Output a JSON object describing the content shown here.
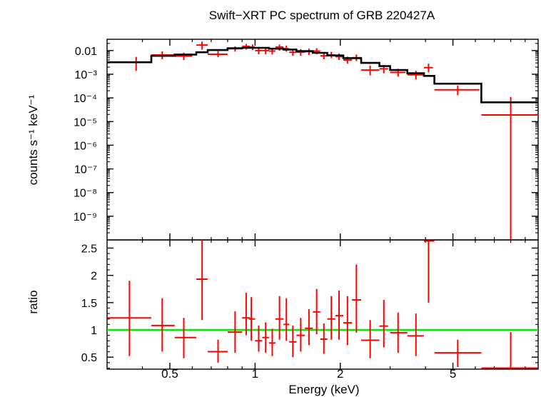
{
  "chart_data": [
    {
      "type": "scatter",
      "title": "Swift−XRT PC spectrum of GRB 220427A",
      "ylabel": "counts s⁻¹ keV⁻¹",
      "xscale": "log",
      "yscale": "log",
      "xlim": [
        0.3,
        10
      ],
      "ylim": [
        1e-10,
        0.03
      ],
      "ytick_labels": [
        "0.01",
        "10⁻³",
        "10⁻⁴",
        "10⁻⁵",
        "10⁻⁶",
        "10⁻⁷",
        "10⁻⁸",
        "10⁻⁹"
      ],
      "series": [
        {
          "kind": "data",
          "color": "#ff0000",
          "points": [
            {
              "x": 0.38,
              "xlo": 0.3,
              "xhi": 0.43,
              "y": 0.0032,
              "ylo": 0.0014,
              "yhi": 0.0054
            },
            {
              "x": 0.47,
              "xlo": 0.43,
              "xhi": 0.52,
              "y": 0.0065,
              "ylo": 0.0043,
              "yhi": 0.0092
            },
            {
              "x": 0.56,
              "xlo": 0.52,
              "xhi": 0.6,
              "y": 0.0058,
              "ylo": 0.004,
              "yhi": 0.0082
            },
            {
              "x": 0.65,
              "xlo": 0.62,
              "xhi": 0.68,
              "y": 0.017,
              "ylo": 0.011,
              "yhi": 0.024
            },
            {
              "x": 0.74,
              "xlo": 0.68,
              "xhi": 0.8,
              "y": 0.007,
              "ylo": 0.0053,
              "yhi": 0.0094
            },
            {
              "x": 0.85,
              "xlo": 0.8,
              "xhi": 0.9,
              "y": 0.012,
              "ylo": 0.009,
              "yhi": 0.015
            },
            {
              "x": 0.93,
              "xlo": 0.9,
              "xhi": 0.96,
              "y": 0.015,
              "ylo": 0.011,
              "yhi": 0.019
            },
            {
              "x": 0.98,
              "xlo": 0.96,
              "xhi": 1.0,
              "y": 0.014,
              "ylo": 0.0105,
              "yhi": 0.018
            },
            {
              "x": 1.03,
              "xlo": 1.0,
              "xhi": 1.06,
              "y": 0.01,
              "ylo": 0.007,
              "yhi": 0.013
            },
            {
              "x": 1.09,
              "xlo": 1.06,
              "xhi": 1.12,
              "y": 0.01,
              "ylo": 0.007,
              "yhi": 0.013
            },
            {
              "x": 1.15,
              "xlo": 1.12,
              "xhi": 1.18,
              "y": 0.0095,
              "ylo": 0.0068,
              "yhi": 0.0125
            },
            {
              "x": 1.22,
              "xlo": 1.18,
              "xhi": 1.26,
              "y": 0.014,
              "ylo": 0.01,
              "yhi": 0.018
            },
            {
              "x": 1.29,
              "xlo": 1.26,
              "xhi": 1.32,
              "y": 0.012,
              "ylo": 0.009,
              "yhi": 0.016
            },
            {
              "x": 1.36,
              "xlo": 1.32,
              "xhi": 1.4,
              "y": 0.0085,
              "ylo": 0.006,
              "yhi": 0.0115
            },
            {
              "x": 1.45,
              "xlo": 1.4,
              "xhi": 1.5,
              "y": 0.0085,
              "ylo": 0.006,
              "yhi": 0.0115
            },
            {
              "x": 1.55,
              "xlo": 1.5,
              "xhi": 1.6,
              "y": 0.009,
              "ylo": 0.0065,
              "yhi": 0.012
            },
            {
              "x": 1.65,
              "xlo": 1.6,
              "xhi": 1.7,
              "y": 0.0095,
              "ylo": 0.007,
              "yhi": 0.0125
            },
            {
              "x": 1.75,
              "xlo": 1.7,
              "xhi": 1.8,
              "y": 0.006,
              "ylo": 0.0043,
              "yhi": 0.008
            },
            {
              "x": 1.86,
              "xlo": 1.8,
              "xhi": 1.92,
              "y": 0.0065,
              "ylo": 0.0048,
              "yhi": 0.0088
            },
            {
              "x": 1.98,
              "xlo": 1.92,
              "xhi": 2.05,
              "y": 0.0055,
              "ylo": 0.004,
              "yhi": 0.0075
            },
            {
              "x": 2.12,
              "xlo": 2.05,
              "xhi": 2.2,
              "y": 0.004,
              "ylo": 0.0028,
              "yhi": 0.0055
            },
            {
              "x": 2.28,
              "xlo": 2.2,
              "xhi": 2.37,
              "y": 0.005,
              "ylo": 0.0036,
              "yhi": 0.0068
            },
            {
              "x": 2.55,
              "xlo": 2.37,
              "xhi": 2.75,
              "y": 0.0015,
              "ylo": 0.0009,
              "yhi": 0.0023
            },
            {
              "x": 2.85,
              "xlo": 2.75,
              "xhi": 2.95,
              "y": 0.0017,
              "ylo": 0.0011,
              "yhi": 0.0024
            },
            {
              "x": 3.2,
              "xlo": 3.0,
              "xhi": 3.4,
              "y": 0.0012,
              "ylo": 0.0008,
              "yhi": 0.0017
            },
            {
              "x": 3.7,
              "xlo": 3.45,
              "xhi": 3.95,
              "y": 0.00095,
              "ylo": 0.0006,
              "yhi": 0.0014
            },
            {
              "x": 4.1,
              "xlo": 3.95,
              "xhi": 4.25,
              "y": 0.0019,
              "ylo": 0.0012,
              "yhi": 0.0028
            },
            {
              "x": 5.2,
              "xlo": 4.3,
              "xhi": 6.2,
              "y": 0.00022,
              "ylo": 0.00013,
              "yhi": 0.00033
            },
            {
              "x": 8.0,
              "xlo": 6.3,
              "xhi": 10.0,
              "y": 1.9e-05,
              "ylo": 1e-10,
              "yhi": 0.00011
            }
          ]
        },
        {
          "kind": "model",
          "color": "#000000",
          "steps": [
            {
              "xlo": 0.3,
              "xhi": 0.43,
              "y": 0.0032
            },
            {
              "xlo": 0.43,
              "xhi": 0.52,
              "y": 0.006
            },
            {
              "xlo": 0.52,
              "xhi": 0.62,
              "y": 0.0068
            },
            {
              "xlo": 0.62,
              "xhi": 0.68,
              "y": 0.0085
            },
            {
              "xlo": 0.68,
              "xhi": 0.8,
              "y": 0.0105
            },
            {
              "xlo": 0.8,
              "xhi": 0.9,
              "y": 0.0125
            },
            {
              "xlo": 0.9,
              "xhi": 1.0,
              "y": 0.013
            },
            {
              "xlo": 1.0,
              "xhi": 1.12,
              "y": 0.013
            },
            {
              "xlo": 1.12,
              "xhi": 1.26,
              "y": 0.012
            },
            {
              "xlo": 1.26,
              "xhi": 1.4,
              "y": 0.011
            },
            {
              "xlo": 1.4,
              "xhi": 1.6,
              "y": 0.0095
            },
            {
              "xlo": 1.6,
              "xhi": 1.8,
              "y": 0.008
            },
            {
              "xlo": 1.8,
              "xhi": 2.05,
              "y": 0.0062
            },
            {
              "xlo": 2.05,
              "xhi": 2.37,
              "y": 0.0048
            },
            {
              "xlo": 2.37,
              "xhi": 2.75,
              "y": 0.003
            },
            {
              "xlo": 2.75,
              "xhi": 3.0,
              "y": 0.0022
            },
            {
              "xlo": 3.0,
              "xhi": 3.45,
              "y": 0.0015
            },
            {
              "xlo": 3.45,
              "xhi": 3.95,
              "y": 0.0011
            },
            {
              "xlo": 3.95,
              "xhi": 4.3,
              "y": 0.00085
            },
            {
              "xlo": 4.3,
              "xhi": 6.3,
              "y": 0.0004
            },
            {
              "xlo": 6.3,
              "xhi": 10.0,
              "y": 6.5e-05
            }
          ]
        }
      ]
    },
    {
      "type": "scatter",
      "xlabel": "Energy (keV)",
      "ylabel": "ratio",
      "xscale": "log",
      "xlim": [
        0.3,
        10
      ],
      "ylim": [
        0.28,
        2.65
      ],
      "xtick_labels": [
        {
          "value": 0.5,
          "label": "0.5"
        },
        {
          "value": 1,
          "label": "1"
        },
        {
          "value": 2,
          "label": "2"
        },
        {
          "value": 5,
          "label": "5"
        }
      ],
      "ytick_labels": [
        {
          "value": 0.5,
          "label": "0.5"
        },
        {
          "value": 1,
          "label": "1"
        },
        {
          "value": 1.5,
          "label": "1.5"
        },
        {
          "value": 2,
          "label": "2"
        },
        {
          "value": 2.5,
          "label": "2.5"
        }
      ],
      "reference_line": {
        "y": 1,
        "color": "#00ee00"
      },
      "series": [
        {
          "kind": "data",
          "color": "#ff0000",
          "points": [
            {
              "x": 0.36,
              "xlo": 0.3,
              "xhi": 0.43,
              "y": 1.22,
              "ylo": 0.52,
              "yhi": 1.9
            },
            {
              "x": 0.47,
              "xlo": 0.43,
              "xhi": 0.52,
              "y": 1.08,
              "ylo": 0.6,
              "yhi": 1.58
            },
            {
              "x": 0.56,
              "xlo": 0.52,
              "xhi": 0.62,
              "y": 0.86,
              "ylo": 0.48,
              "yhi": 1.22
            },
            {
              "x": 0.65,
              "xlo": 0.62,
              "xhi": 0.68,
              "y": 1.93,
              "ylo": 1.18,
              "yhi": 2.65
            },
            {
              "x": 0.74,
              "xlo": 0.68,
              "xhi": 0.8,
              "y": 0.6,
              "ylo": 0.4,
              "yhi": 0.82
            },
            {
              "x": 0.85,
              "xlo": 0.8,
              "xhi": 0.9,
              "y": 0.96,
              "ylo": 0.58,
              "yhi": 1.34
            },
            {
              "x": 0.93,
              "xlo": 0.9,
              "xhi": 0.96,
              "y": 1.22,
              "ylo": 0.9,
              "yhi": 1.68
            },
            {
              "x": 0.97,
              "xlo": 0.95,
              "xhi": 1.0,
              "y": 1.2,
              "ylo": 0.8,
              "yhi": 1.6
            },
            {
              "x": 1.03,
              "xlo": 1.0,
              "xhi": 1.06,
              "y": 0.8,
              "ylo": 0.6,
              "yhi": 1.08
            },
            {
              "x": 1.09,
              "xlo": 1.06,
              "xhi": 1.12,
              "y": 0.86,
              "ylo": 0.58,
              "yhi": 1.14
            },
            {
              "x": 1.15,
              "xlo": 1.12,
              "xhi": 1.18,
              "y": 0.76,
              "ylo": 0.52,
              "yhi": 1.02
            },
            {
              "x": 1.22,
              "xlo": 1.18,
              "xhi": 1.26,
              "y": 1.2,
              "ylo": 0.82,
              "yhi": 1.62
            },
            {
              "x": 1.29,
              "xlo": 1.26,
              "xhi": 1.32,
              "y": 1.1,
              "ylo": 0.8,
              "yhi": 1.58
            },
            {
              "x": 1.36,
              "xlo": 1.32,
              "xhi": 1.4,
              "y": 0.78,
              "ylo": 0.5,
              "yhi": 1.08
            },
            {
              "x": 1.45,
              "xlo": 1.4,
              "xhi": 1.5,
              "y": 0.9,
              "ylo": 0.6,
              "yhi": 1.22
            },
            {
              "x": 1.55,
              "xlo": 1.5,
              "xhi": 1.6,
              "y": 1.03,
              "ylo": 0.72,
              "yhi": 1.38
            },
            {
              "x": 1.65,
              "xlo": 1.6,
              "xhi": 1.7,
              "y": 1.33,
              "ylo": 0.92,
              "yhi": 1.75
            },
            {
              "x": 1.75,
              "xlo": 1.7,
              "xhi": 1.8,
              "y": 0.83,
              "ylo": 0.56,
              "yhi": 1.12
            },
            {
              "x": 1.86,
              "xlo": 1.8,
              "xhi": 1.92,
              "y": 1.2,
              "ylo": 0.82,
              "yhi": 1.62
            },
            {
              "x": 1.98,
              "xlo": 1.92,
              "xhi": 2.05,
              "y": 1.26,
              "ylo": 0.82,
              "yhi": 1.72
            },
            {
              "x": 2.12,
              "xlo": 2.05,
              "xhi": 2.2,
              "y": 1.13,
              "ylo": 0.72,
              "yhi": 1.62
            },
            {
              "x": 2.28,
              "xlo": 2.2,
              "xhi": 2.37,
              "y": 1.55,
              "ylo": 0.95,
              "yhi": 2.2
            },
            {
              "x": 2.55,
              "xlo": 2.37,
              "xhi": 2.75,
              "y": 0.81,
              "ylo": 0.48,
              "yhi": 1.18
            },
            {
              "x": 2.85,
              "xlo": 2.75,
              "xhi": 2.95,
              "y": 1.07,
              "ylo": 0.68,
              "yhi": 1.55
            },
            {
              "x": 3.2,
              "xlo": 3.0,
              "xhi": 3.45,
              "y": 0.95,
              "ylo": 0.58,
              "yhi": 1.32
            },
            {
              "x": 3.7,
              "xlo": 3.45,
              "xhi": 3.95,
              "y": 0.89,
              "ylo": 0.52,
              "yhi": 1.3
            },
            {
              "x": 4.1,
              "xlo": 3.95,
              "xhi": 4.3,
              "y": 2.63,
              "ylo": 1.5,
              "yhi": 2.65
            },
            {
              "x": 5.2,
              "xlo": 4.3,
              "xhi": 6.3,
              "y": 0.58,
              "ylo": 0.32,
              "yhi": 0.82
            },
            {
              "x": 8.0,
              "xlo": 6.3,
              "xhi": 10.0,
              "y": 0.3,
              "ylo": 0.28,
              "yhi": 0.96
            }
          ]
        }
      ]
    }
  ]
}
